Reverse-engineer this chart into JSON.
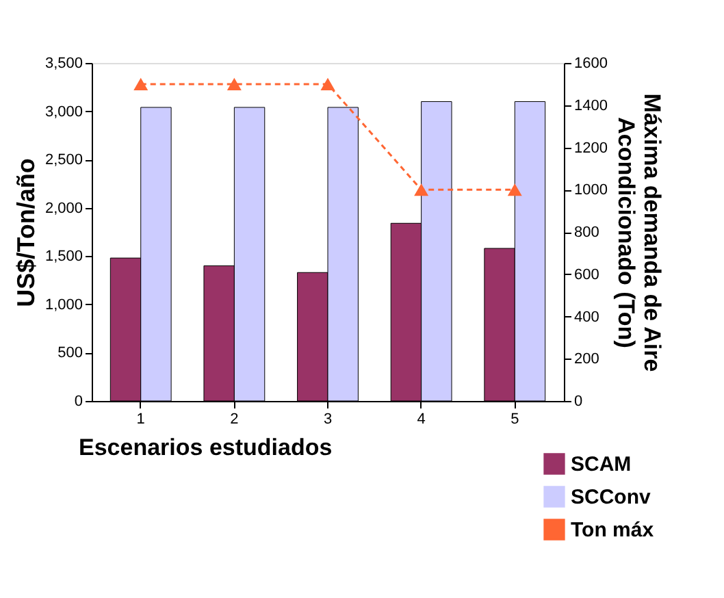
{
  "chart_data": {
    "type": "bar",
    "xlabel": "Escenarios estudiados",
    "ylabel": "US$/Ton/año",
    "y2label": "Máxima demanda de Aire\nAcondicionado (Ton)",
    "categories": [
      "1",
      "2",
      "3",
      "4",
      "5"
    ],
    "series": [
      {
        "name": "SCAM",
        "color": "#993366",
        "values": [
          1480,
          1400,
          1330,
          1840,
          1580
        ]
      },
      {
        "name": "SCConv",
        "color": "#ccccff",
        "values": [
          3040,
          3040,
          3040,
          3100,
          3100
        ]
      },
      {
        "name": "Ton máx",
        "type": "line",
        "axis": "y2",
        "color": "#ff6633",
        "marker": "triangle",
        "line_style": "dashed",
        "values": [
          1500,
          1500,
          1500,
          1000,
          1000
        ]
      }
    ],
    "ylim": [
      0,
      3500
    ],
    "yticks": [
      {
        "value": 0,
        "label": "0"
      },
      {
        "value": 500,
        "label": "500"
      },
      {
        "value": 1000,
        "label": "1,000"
      },
      {
        "value": 1500,
        "label": "1,500"
      },
      {
        "value": 2000,
        "label": "2,000"
      },
      {
        "value": 2500,
        "label": "2,500"
      },
      {
        "value": 3000,
        "label": "3,000"
      },
      {
        "value": 3500,
        "label": "3,500"
      }
    ],
    "y2lim": [
      0,
      1600
    ],
    "y2ticks": [
      0,
      200,
      400,
      600,
      800,
      1000,
      1200,
      1400,
      1600
    ],
    "grid": false,
    "legend": "bottom right"
  }
}
